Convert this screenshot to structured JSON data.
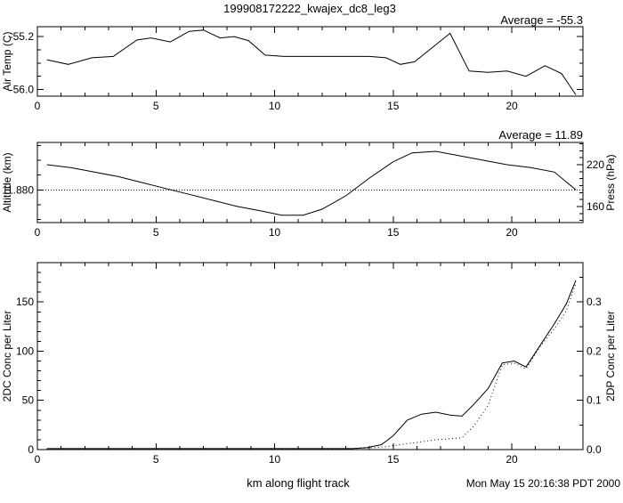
{
  "title": "199908172222_kwajex_dc8_leg3",
  "xlabel": "km along flight track",
  "timestamp": "Mon May 15 20:16:38 PDT 2000",
  "colors": {
    "foreground": "#000000",
    "background": "#ffffff"
  },
  "chart_data": [
    {
      "type": "line",
      "ylabel": "Air Temp (C)",
      "annotation": "Average = -55.3",
      "xlim": [
        0,
        23
      ],
      "xticks": [
        0,
        5,
        10,
        15,
        20
      ],
      "ylim": [
        -56.1,
        -55.05
      ],
      "yticks": [
        {
          "v": -56.0,
          "label": "-56.0"
        },
        {
          "v": -55.2,
          "label": "-55.2"
        }
      ],
      "yminor": [
        -55.8,
        -55.6,
        -55.4
      ],
      "grid": false,
      "series": [
        {
          "name": "air-temp",
          "style": "solid",
          "axis": "left",
          "x": [
            0.4,
            1.3,
            2.3,
            3.2,
            4.2,
            4.8,
            5.6,
            6.4,
            7.0,
            7.7,
            8.3,
            8.9,
            9.6,
            10.4,
            11.3,
            12.2,
            13.1,
            14.0,
            14.7,
            15.3,
            15.9,
            16.6,
            17.4,
            18.2,
            19.0,
            19.8,
            20.6,
            21.4,
            22.1,
            22.7
          ],
          "y": [
            -55.55,
            -55.62,
            -55.52,
            -55.5,
            -55.25,
            -55.22,
            -55.28,
            -55.12,
            -55.1,
            -55.22,
            -55.2,
            -55.26,
            -55.48,
            -55.5,
            -55.5,
            -55.5,
            -55.5,
            -55.5,
            -55.52,
            -55.62,
            -55.58,
            -55.38,
            -55.15,
            -55.72,
            -55.74,
            -55.72,
            -55.8,
            -55.64,
            -55.76,
            -56.08
          ]
        }
      ]
    },
    {
      "type": "line",
      "ylabel": "Altitude (km)",
      "ylabel_right": "Press (hPa)",
      "annotation": "Average = 11.89",
      "xlim": [
        0,
        23
      ],
      "xticks": [
        0,
        5,
        10,
        15,
        20
      ],
      "ylim": [
        11.858,
        11.912
      ],
      "yticks": [
        {
          "v": 11.88,
          "label": "11.880"
        }
      ],
      "yminor": [
        11.86,
        11.87,
        11.89,
        11.9,
        11.91
      ],
      "rlim": [
        137,
        252
      ],
      "rticks": [
        {
          "v": 160,
          "label": "160"
        },
        {
          "v": 220,
          "label": "220"
        }
      ],
      "rminor": [
        140,
        150,
        170,
        180,
        190,
        200,
        210,
        230,
        240,
        250
      ],
      "refline": 11.88,
      "grid": false,
      "series": [
        {
          "name": "altitude",
          "style": "solid",
          "axis": "left",
          "x": [
            0.4,
            1.4,
            2.4,
            3.4,
            4.4,
            5.4,
            6.4,
            7.4,
            8.4,
            9.4,
            10.3,
            11.2,
            12.0,
            13.0,
            14.0,
            15.0,
            15.8,
            16.8,
            17.8,
            18.8,
            19.8,
            20.8,
            21.8,
            22.7
          ],
          "y": [
            11.897,
            11.895,
            11.892,
            11.889,
            11.885,
            11.881,
            11.877,
            11.873,
            11.869,
            11.866,
            11.863,
            11.863,
            11.867,
            11.876,
            11.888,
            11.899,
            11.905,
            11.906,
            11.903,
            11.9,
            11.897,
            11.895,
            11.892,
            11.88
          ]
        }
      ]
    },
    {
      "type": "line",
      "ylabel": "2DC Conc per Liter",
      "ylabel_right": "2DP Conc per Liter",
      "xlim": [
        0,
        23
      ],
      "xticks": [
        0,
        5,
        10,
        15,
        20
      ],
      "ylim": [
        0,
        190
      ],
      "yticks": [
        {
          "v": 0,
          "label": "0"
        },
        {
          "v": 50,
          "label": "50"
        },
        {
          "v": 100,
          "label": "100"
        },
        {
          "v": 150,
          "label": "150"
        }
      ],
      "yminor": [
        10,
        20,
        30,
        40,
        60,
        70,
        80,
        90,
        110,
        120,
        130,
        140,
        160,
        170,
        180
      ],
      "rlim": [
        0,
        0.38
      ],
      "rticks": [
        {
          "v": 0.0,
          "label": "0.0"
        },
        {
          "v": 0.1,
          "label": "0.1"
        },
        {
          "v": 0.2,
          "label": "0.2"
        },
        {
          "v": 0.3,
          "label": "0.3"
        }
      ],
      "rminor": [
        0.05,
        0.15,
        0.25,
        0.35
      ],
      "grid": false,
      "series": [
        {
          "name": "2dc-conc",
          "style": "solid",
          "axis": "left",
          "x": [
            0.4,
            2,
            4,
            6,
            8,
            10,
            12,
            13.3,
            13.9,
            14.5,
            15.0,
            15.6,
            16.2,
            16.8,
            17.4,
            17.9,
            18.4,
            19.0,
            19.6,
            20.1,
            20.6,
            21.2,
            21.8,
            22.3,
            22.7
          ],
          "y": [
            1,
            1,
            1,
            1,
            1,
            1,
            1,
            1,
            2,
            5,
            14,
            30,
            36,
            38,
            35,
            34,
            46,
            62,
            88,
            90,
            84,
            106,
            128,
            148,
            172
          ]
        },
        {
          "name": "2dp-conc",
          "style": "dotted",
          "axis": "right",
          "x": [
            0.4,
            2,
            4,
            6,
            8,
            10,
            12,
            13.3,
            13.9,
            14.5,
            15.0,
            15.6,
            16.2,
            16.8,
            17.4,
            17.9,
            18.4,
            19.0,
            19.6,
            20.1,
            20.6,
            21.2,
            21.8,
            22.3,
            22.7
          ],
          "y": [
            0.001,
            0.001,
            0.001,
            0.001,
            0.001,
            0.001,
            0.001,
            0.002,
            0.003,
            0.005,
            0.008,
            0.012,
            0.016,
            0.02,
            0.022,
            0.024,
            0.048,
            0.09,
            0.172,
            0.176,
            0.164,
            0.21,
            0.246,
            0.282,
            0.338
          ]
        }
      ]
    }
  ]
}
